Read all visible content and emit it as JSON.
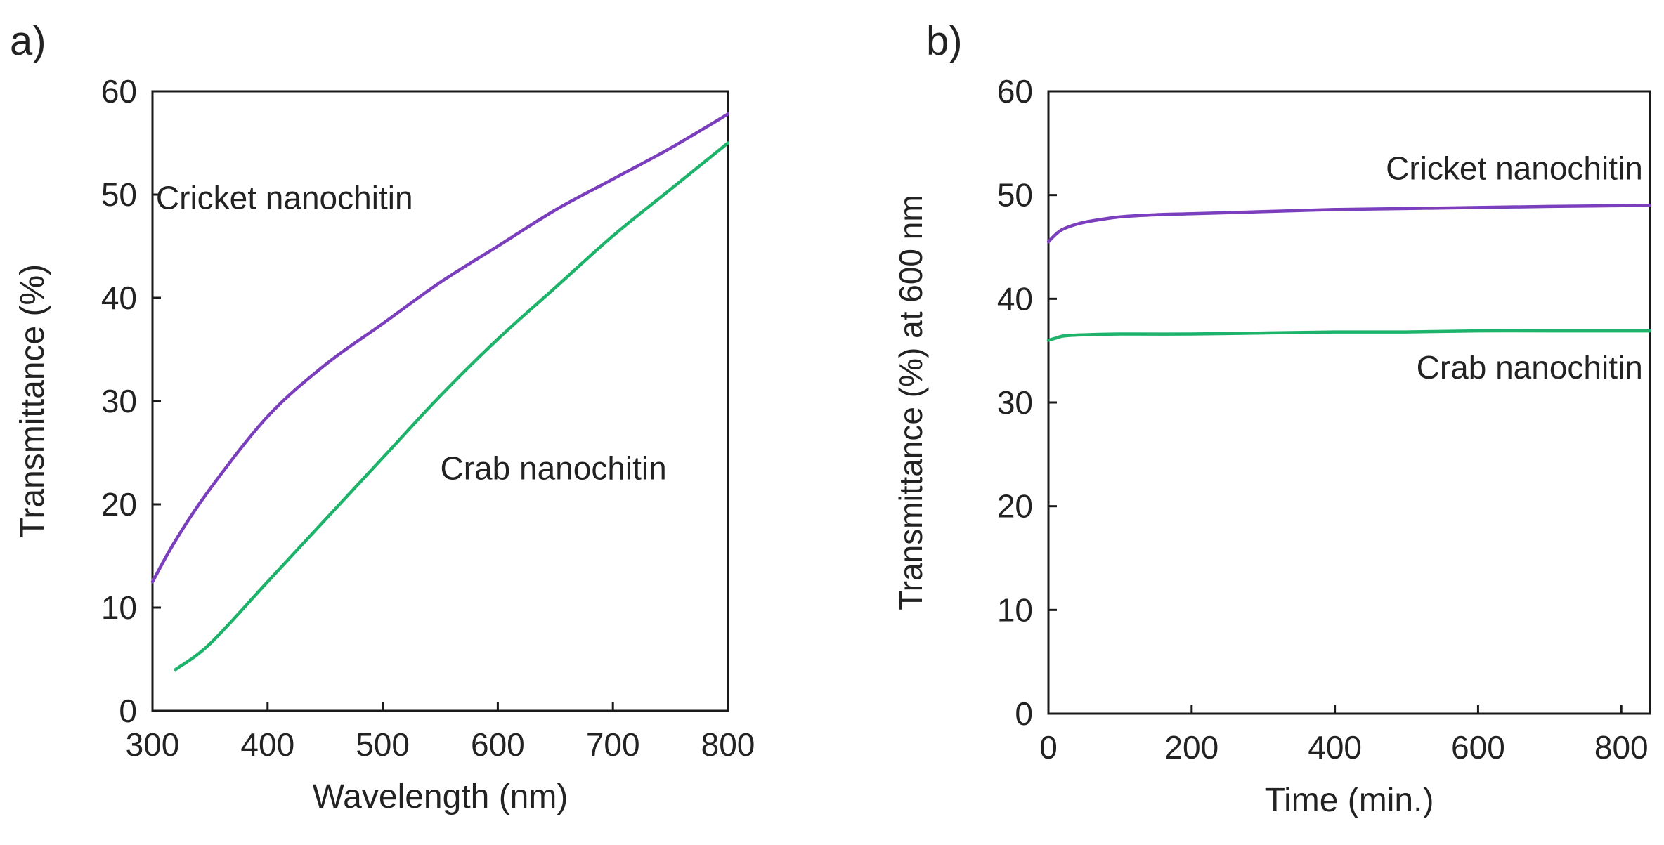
{
  "figure": {
    "panel_labels": [
      "a)",
      "b)"
    ]
  },
  "chart_data": [
    {
      "type": "line",
      "panel": "a)",
      "title": "",
      "xlabel": "Wavelength (nm)",
      "ylabel": "Transmittance (%)",
      "xlim": [
        300,
        800
      ],
      "ylim": [
        0,
        60
      ],
      "xticks": [
        300,
        400,
        500,
        600,
        700,
        800
      ],
      "yticks": [
        0,
        10,
        20,
        30,
        40,
        50,
        60
      ],
      "legend": "inline labels",
      "series": [
        {
          "name": "Cricket nanochitin",
          "color": "#7b3fbd",
          "x": [
            300,
            320,
            350,
            400,
            450,
            500,
            550,
            600,
            650,
            700,
            750,
            800
          ],
          "y": [
            12.5,
            16.5,
            21.5,
            28.5,
            33.5,
            37.5,
            41.5,
            45.0,
            48.5,
            51.5,
            54.5,
            57.8
          ]
        },
        {
          "name": "Crab nanochitin",
          "color": "#1db36a",
          "x": [
            320,
            350,
            400,
            450,
            500,
            550,
            600,
            650,
            700,
            750,
            800
          ],
          "y": [
            4.0,
            6.5,
            12.5,
            18.5,
            24.5,
            30.5,
            36.0,
            41.0,
            46.0,
            50.5,
            55.0
          ]
        }
      ],
      "annotations": [
        {
          "text": "Cricket nanochitin",
          "x": 303,
          "y": 48.6
        },
        {
          "text": "Crab nanochitin",
          "x": 550,
          "y": 22.4
        }
      ]
    },
    {
      "type": "line",
      "panel": "b)",
      "title": "",
      "xlabel": "Time (min.)",
      "ylabel": "Transmittance (%) at 600 nm",
      "xlim": [
        0,
        840
      ],
      "ylim": [
        0,
        60
      ],
      "xticks": [
        0,
        200,
        400,
        600,
        800
      ],
      "yticks": [
        0,
        10,
        20,
        30,
        40,
        50,
        60
      ],
      "legend": "inline labels",
      "series": [
        {
          "name": "Cricket nanochitin",
          "color": "#7b3fbd",
          "x": [
            0,
            10,
            20,
            40,
            60,
            100,
            150,
            200,
            300,
            400,
            500,
            600,
            700,
            840
          ],
          "y": [
            45.5,
            46.2,
            46.7,
            47.2,
            47.5,
            47.9,
            48.1,
            48.2,
            48.4,
            48.6,
            48.7,
            48.8,
            48.9,
            49.0
          ]
        },
        {
          "name": "Crab nanochitin",
          "color": "#1db36a",
          "x": [
            0,
            10,
            20,
            40,
            100,
            200,
            300,
            400,
            500,
            600,
            700,
            840
          ],
          "y": [
            36.0,
            36.2,
            36.4,
            36.5,
            36.6,
            36.6,
            36.7,
            36.8,
            36.8,
            36.9,
            36.9,
            36.9
          ]
        }
      ],
      "annotations": [
        {
          "text": "Cricket nanochitin",
          "x": 830,
          "y": 51.5
        },
        {
          "text": "Crab nanochitin",
          "x": 830,
          "y": 32.3
        }
      ]
    }
  ]
}
